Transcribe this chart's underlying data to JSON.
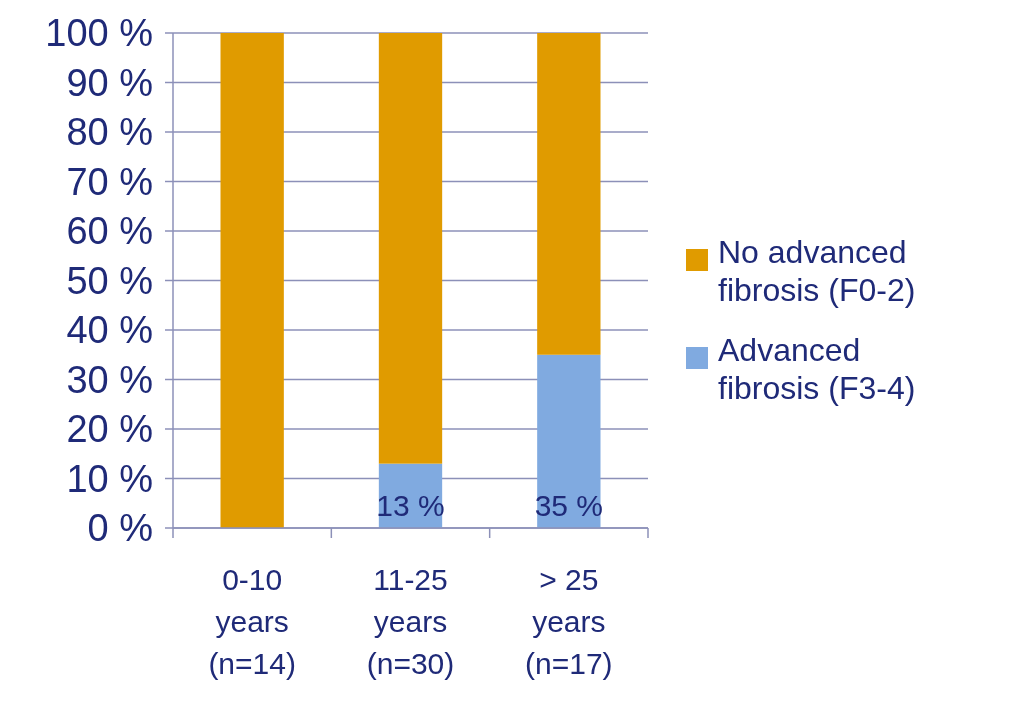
{
  "chart_data": {
    "type": "bar",
    "stacked": true,
    "categories": [
      "0-10\nyears\n(n=14)",
      "11-25\nyears\n(n=30)",
      "> 25\nyears\n(n=17)"
    ],
    "series": [
      {
        "name": "Advanced fibrosis (F3-4)",
        "color": "#80aae0",
        "values": [
          0,
          13,
          35
        ],
        "value_labels": [
          null,
          "13 %",
          "35 %"
        ]
      },
      {
        "name": "No advanced fibrosis (F0-2)",
        "color": "#e09b00",
        "values": [
          100,
          87,
          65
        ]
      }
    ],
    "ylim": [
      0,
      100
    ],
    "yticks": [
      {
        "value": 0,
        "label": "0 %"
      },
      {
        "value": 10,
        "label": "10 %"
      },
      {
        "value": 20,
        "label": "20 %"
      },
      {
        "value": 30,
        "label": "30 %"
      },
      {
        "value": 40,
        "label": "40 %"
      },
      {
        "value": 50,
        "label": "50 %"
      },
      {
        "value": 60,
        "label": "60 %"
      },
      {
        "value": 70,
        "label": "70 %"
      },
      {
        "value": 80,
        "label": "80 %"
      },
      {
        "value": 90,
        "label": "90 %"
      },
      {
        "value": 100,
        "label": "100 %"
      }
    ],
    "grid": "y",
    "legend": "right"
  }
}
